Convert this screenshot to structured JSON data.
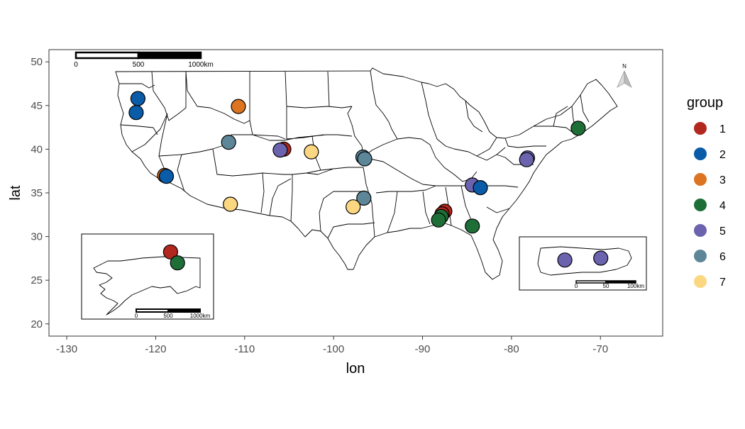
{
  "chart_data": {
    "type": "scatter",
    "xlabel": "lon",
    "ylabel": "lat",
    "xlim": [
      -132,
      -63
    ],
    "ylim": [
      18.6,
      51.4
    ],
    "x_ticks": [
      -130,
      -120,
      -110,
      -100,
      -90,
      -80,
      -70
    ],
    "y_ticks": [
      20,
      25,
      30,
      35,
      40,
      45,
      50
    ],
    "grid": false,
    "legend": {
      "title": "group",
      "placement": "right",
      "entries": [
        {
          "label": "1",
          "color": "#B2271E"
        },
        {
          "label": "2",
          "color": "#0A5BA8"
        },
        {
          "label": "3",
          "color": "#DD7421"
        },
        {
          "label": "4",
          "color": "#1E6E38"
        },
        {
          "label": "5",
          "color": "#6B63AE"
        },
        {
          "label": "6",
          "color": "#5D8799"
        },
        {
          "label": "7",
          "color": "#FCD781"
        }
      ]
    },
    "points": [
      {
        "lon": -122.0,
        "lat": 45.8,
        "group": "2"
      },
      {
        "lon": -122.2,
        "lat": 44.2,
        "group": "2"
      },
      {
        "lon": -110.7,
        "lat": 44.9,
        "group": "3"
      },
      {
        "lon": -119.0,
        "lat": 37.0,
        "group": "3"
      },
      {
        "lon": -118.8,
        "lat": 36.9,
        "group": "2"
      },
      {
        "lon": -111.8,
        "lat": 40.8,
        "group": "6"
      },
      {
        "lon": -111.6,
        "lat": 33.7,
        "group": "7"
      },
      {
        "lon": -105.6,
        "lat": 40.0,
        "group": "1"
      },
      {
        "lon": -106.0,
        "lat": 39.9,
        "group": "5"
      },
      {
        "lon": -102.5,
        "lat": 39.7,
        "group": "7"
      },
      {
        "lon": -96.7,
        "lat": 39.1,
        "group": "6"
      },
      {
        "lon": -96.5,
        "lat": 38.9,
        "group": "6"
      },
      {
        "lon": -96.6,
        "lat": 34.4,
        "group": "6"
      },
      {
        "lon": -97.8,
        "lat": 33.4,
        "group": "7"
      },
      {
        "lon": -87.5,
        "lat": 32.9,
        "group": "1"
      },
      {
        "lon": -87.8,
        "lat": 32.6,
        "group": "1"
      },
      {
        "lon": -87.9,
        "lat": 32.3,
        "group": "4"
      },
      {
        "lon": -88.2,
        "lat": 31.9,
        "group": "4"
      },
      {
        "lon": -84.4,
        "lat": 31.2,
        "group": "4"
      },
      {
        "lon": -84.4,
        "lat": 35.9,
        "group": "5"
      },
      {
        "lon": -83.5,
        "lat": 35.6,
        "group": "2"
      },
      {
        "lon": -78.2,
        "lat": 39.0,
        "group": "5"
      },
      {
        "lon": -78.3,
        "lat": 38.8,
        "group": "5"
      },
      {
        "lon": -72.5,
        "lat": 42.4,
        "group": "4"
      }
    ],
    "insets": [
      {
        "region": "Alaska",
        "points": [
          {
            "group": "1",
            "lon": -149.5,
            "lat": 68.6
          },
          {
            "group": "4",
            "lon": -147.5,
            "lat": 66.3
          }
        ],
        "scale_bar": [
          "0",
          "500",
          "1000km"
        ]
      },
      {
        "region": "Puerto Rico",
        "points": [
          {
            "group": "5",
            "lon": -66.8,
            "lat": 18.25
          },
          {
            "group": "5",
            "lon": -66.1,
            "lat": 18.3
          }
        ],
        "scale_bar": [
          "0",
          "50",
          "100km"
        ]
      }
    ],
    "scale_bar": [
      "0",
      "500",
      "1000km"
    ],
    "north_arrow": "N"
  }
}
